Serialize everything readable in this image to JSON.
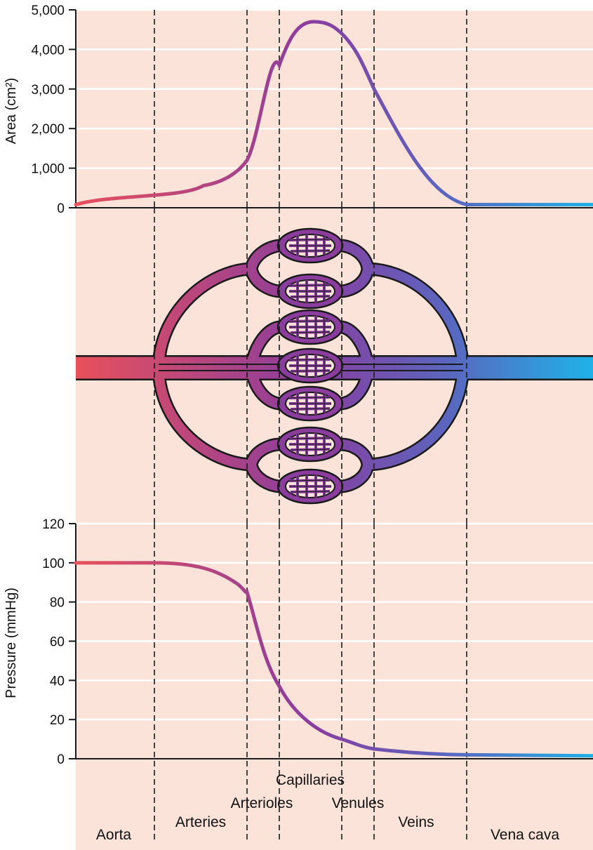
{
  "colors": {
    "panel_background": "#fbe3da",
    "gridline": "#ffffff",
    "arterial_red": "#e8505b",
    "capillary_purple": "#8b3d9e",
    "venous_blue": "#1fb2e8",
    "outline": "#1a1a1a"
  },
  "regions": [
    "Aorta",
    "Arteries",
    "Arterioles",
    "Capillaries",
    "Venules",
    "Veins",
    "Vena cava"
  ],
  "chart_data": [
    {
      "type": "line",
      "ylabel": "Area (cm²)",
      "ylim": [
        0,
        5000
      ],
      "yticks": [
        "0",
        "1,000",
        "2,000",
        "3,000",
        "4,000",
        "5,000"
      ],
      "grid": true,
      "x_categories": [
        "Aorta",
        "Arteries",
        "Arterioles",
        "Capillaries",
        "Venules",
        "Veins",
        "Vena cava"
      ],
      "series": [
        {
          "values_by_segment_start": [
            {
              "x": "Aorta",
              "y": 80
            },
            {
              "x": "Arteries",
              "y": 380
            },
            {
              "x": "Arterioles",
              "y": 1200
            },
            {
              "x": "Capillaries",
              "y": 3600
            },
            {
              "x": "Capillaries (peak)",
              "y": 4700
            },
            {
              "x": "Venules",
              "y": 4400
            },
            {
              "x": "Veins",
              "y": 3000
            },
            {
              "x": "Vena cava",
              "y": 80
            }
          ]
        }
      ]
    },
    {
      "type": "line",
      "ylabel": "Pressure (mmHg)",
      "ylim": [
        0,
        120
      ],
      "yticks": [
        "0",
        "20",
        "40",
        "60",
        "80",
        "100",
        "120"
      ],
      "grid": true,
      "x_categories": [
        "Aorta",
        "Arteries",
        "Arterioles",
        "Capillaries",
        "Venules",
        "Veins",
        "Vena cava"
      ],
      "series": [
        {
          "values_by_segment_start": [
            {
              "x": "Aorta",
              "y": 100
            },
            {
              "x": "Arteries",
              "y": 100
            },
            {
              "x": "Arterioles",
              "y": 85
            },
            {
              "x": "Capillaries",
              "y": 37
            },
            {
              "x": "Venules",
              "y": 10
            },
            {
              "x": "Veins",
              "y": 5
            },
            {
              "x": "Vena cava",
              "y": 2
            },
            {
              "x": "Vena cava (end)",
              "y": 1.5
            }
          ]
        }
      ]
    }
  ]
}
